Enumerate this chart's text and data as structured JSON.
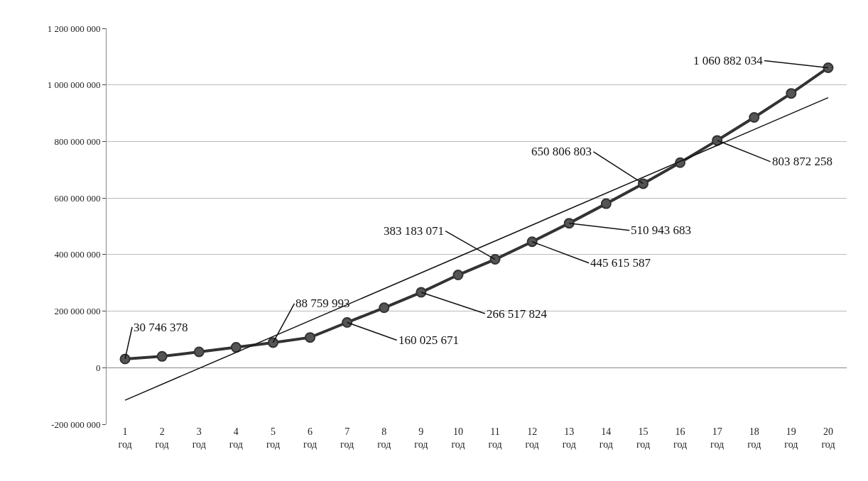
{
  "chart_data": {
    "type": "line",
    "categories": [
      "1 год",
      "2 год",
      "3 год",
      "4 год",
      "5 год",
      "6 год",
      "7 год",
      "8 год",
      "9 год",
      "10 год",
      "11 год",
      "12 год",
      "13 год",
      "14 год",
      "15 год",
      "16 год",
      "17 год",
      "18 год",
      "19 год",
      "20 год"
    ],
    "series": [
      {
        "color": "#333333",
        "marker": "circle",
        "line_style": "solid",
        "values": [
          30746378,
          40000000,
          56000000,
          72000000,
          88759993,
          107000000,
          160025671,
          212000000,
          266517824,
          328000000,
          383183071,
          445615587,
          510943683,
          580000000,
          650806803,
          725000000,
          803872258,
          885000000,
          970000000,
          1060882034
        ],
        "value_labels": [
          "30 746 378",
          null,
          null,
          null,
          "88 759 993",
          null,
          "160 025 671",
          null,
          "266 517 824",
          null,
          "383 183 071",
          "445 615 587",
          "510 943 683",
          null,
          "650 806 803",
          null,
          "803 872 258",
          null,
          null,
          "1 060 882 034"
        ]
      },
      {
        "type": "line",
        "color": "#111111",
        "marker": "none",
        "line_style": "solid",
        "x": [
          "1 год",
          "20 год"
        ],
        "values": [
          -115000000,
          955000000
        ]
      }
    ],
    "ylim": [
      -200000000,
      1200000000
    ],
    "yticks": [
      {
        "value": -200000000,
        "label": "-200 000 000"
      },
      {
        "value": 0,
        "label": "0"
      },
      {
        "value": 200000000,
        "label": "200 000 000"
      },
      {
        "value": 400000000,
        "label": "400 000 000"
      },
      {
        "value": 600000000,
        "label": "600 000 000"
      },
      {
        "value": 800000000,
        "label": "800 000 000"
      },
      {
        "value": 1000000000,
        "label": "1 000 000 000"
      },
      {
        "value": 1200000000,
        "label": "1 200 000 000"
      }
    ],
    "grid": "y"
  }
}
